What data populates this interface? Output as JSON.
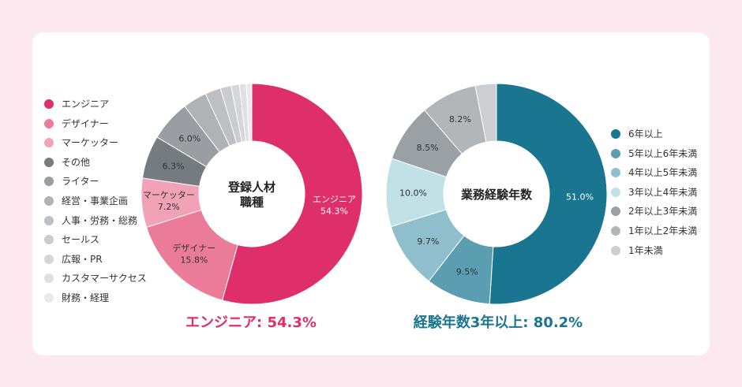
{
  "chart_data": [
    {
      "type": "pie",
      "center_title": [
        "登録人材",
        "職種"
      ],
      "series": [
        {
          "name": "エンジニア",
          "value": 54.3,
          "color": "#de2f6b",
          "label": [
            "エンジニア",
            "54.3%"
          ],
          "label_color": "#ffffff"
        },
        {
          "name": "デザイナー",
          "value": 15.8,
          "color": "#ea7c99",
          "label": [
            "デザイナー",
            "15.8%"
          ],
          "label_color": "#333333"
        },
        {
          "name": "マーケッター",
          "value": 7.2,
          "color": "#f1a2b7",
          "label": [
            "マーケッター",
            "7.2%"
          ],
          "label_color": "#333333"
        },
        {
          "name": "その他",
          "value": 6.3,
          "color": "#767b80",
          "label": [
            "6.3%"
          ],
          "label_color": "#333333"
        },
        {
          "name": "ライター",
          "value": 6.0,
          "color": "#9a9ea2",
          "label": [
            "6.0%"
          ],
          "label_color": "#333333"
        },
        {
          "name": "経営・事業企画",
          "value": 3.5,
          "color": "#b0b3b6",
          "label": [],
          "label_color": "#333333"
        },
        {
          "name": "人事・労務・総務",
          "value": 2.3,
          "color": "#bdc0c2",
          "label": [],
          "label_color": "#333333"
        },
        {
          "name": "セールス",
          "value": 1.6,
          "color": "#cacccf",
          "label": [],
          "label_color": "#333333"
        },
        {
          "name": "広報・PR",
          "value": 1.2,
          "color": "#d4d6d8",
          "label": [],
          "label_color": "#333333"
        },
        {
          "name": "カスタマーサクセス",
          "value": 1.0,
          "color": "#dfe0e2",
          "label": [],
          "label_color": "#333333"
        },
        {
          "name": "財務・経理",
          "value": 0.8,
          "color": "#e9eaeb",
          "label": [],
          "label_color": "#333333"
        }
      ],
      "summary": "エンジニア: 54.3%",
      "summary_color": "#de2f6b"
    },
    {
      "type": "pie",
      "center_title": [
        "業務経験年数"
      ],
      "series": [
        {
          "name": "6年以上",
          "value": 51.0,
          "color": "#1a7590",
          "label": [
            "51.0%"
          ],
          "label_color": "#ffffff"
        },
        {
          "name": "5年以上6年未満",
          "value": 9.5,
          "color": "#5b9db1",
          "label": [
            "9.5%"
          ],
          "label_color": "#333333"
        },
        {
          "name": "4年以上5年未満",
          "value": 9.7,
          "color": "#8fbfcc",
          "label": [
            "9.7%"
          ],
          "label_color": "#333333"
        },
        {
          "name": "3年以上4年未満",
          "value": 10.0,
          "color": "#c2e1e7",
          "label": [
            "10.0%"
          ],
          "label_color": "#333333"
        },
        {
          "name": "2年以上3年未満",
          "value": 8.5,
          "color": "#9ba0a4",
          "label": [
            "8.5%"
          ],
          "label_color": "#333333"
        },
        {
          "name": "1年以上2年未満",
          "value": 8.2,
          "color": "#b3b6b9",
          "label": [
            "8.2%"
          ],
          "label_color": "#333333"
        },
        {
          "name": "1年未満",
          "value": 3.1,
          "color": "#cccfd1",
          "label": [],
          "label_color": "#333333"
        }
      ],
      "summary": "経験年数3年以上: 80.2%",
      "summary_color": "#1a7590"
    }
  ]
}
